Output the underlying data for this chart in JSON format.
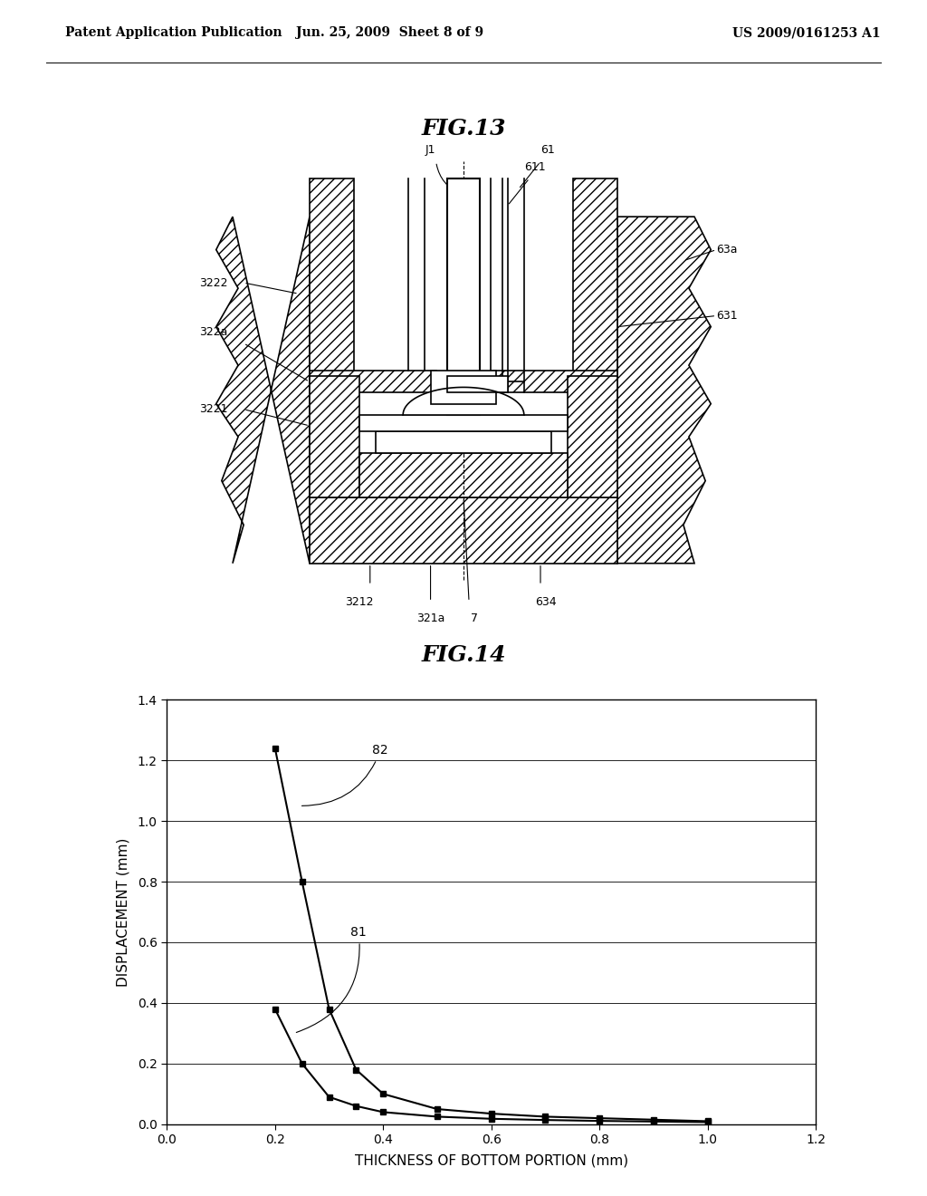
{
  "header_left": "Patent Application Publication",
  "header_mid": "Jun. 25, 2009  Sheet 8 of 9",
  "header_right": "US 2009/0161253 A1",
  "fig13_title": "FIG.13",
  "fig14_title": "FIG.14",
  "fig14_xlabel": "THICKNESS OF BOTTOM PORTION (mm)",
  "fig14_ylabel": "DISPLACEMENT (mm)",
  "fig14_xlim": [
    0,
    1.2
  ],
  "fig14_ylim": [
    0,
    1.4
  ],
  "fig14_xticks": [
    0,
    0.2,
    0.4,
    0.6,
    0.8,
    1.0,
    1.2
  ],
  "fig14_yticks": [
    0,
    0.2,
    0.4,
    0.6,
    0.8,
    1.0,
    1.2,
    1.4
  ],
  "curve82_x": [
    0.2,
    0.25,
    0.3,
    0.35,
    0.4,
    0.5,
    0.6,
    0.7,
    0.8,
    0.9,
    1.0
  ],
  "curve82_y": [
    1.24,
    0.8,
    0.38,
    0.18,
    0.1,
    0.05,
    0.035,
    0.025,
    0.02,
    0.015,
    0.01
  ],
  "curve81_x": [
    0.2,
    0.25,
    0.3,
    0.35,
    0.4,
    0.5,
    0.6,
    0.7,
    0.8,
    0.9,
    1.0
  ],
  "curve81_y": [
    0.38,
    0.2,
    0.09,
    0.06,
    0.04,
    0.025,
    0.018,
    0.014,
    0.011,
    0.009,
    0.007
  ],
  "bg_color": "#ffffff",
  "line_color": "#000000",
  "hatch_color": "#aaaaaa",
  "label_fontsize": 9,
  "title_fontsize": 18,
  "header_fontsize": 10
}
